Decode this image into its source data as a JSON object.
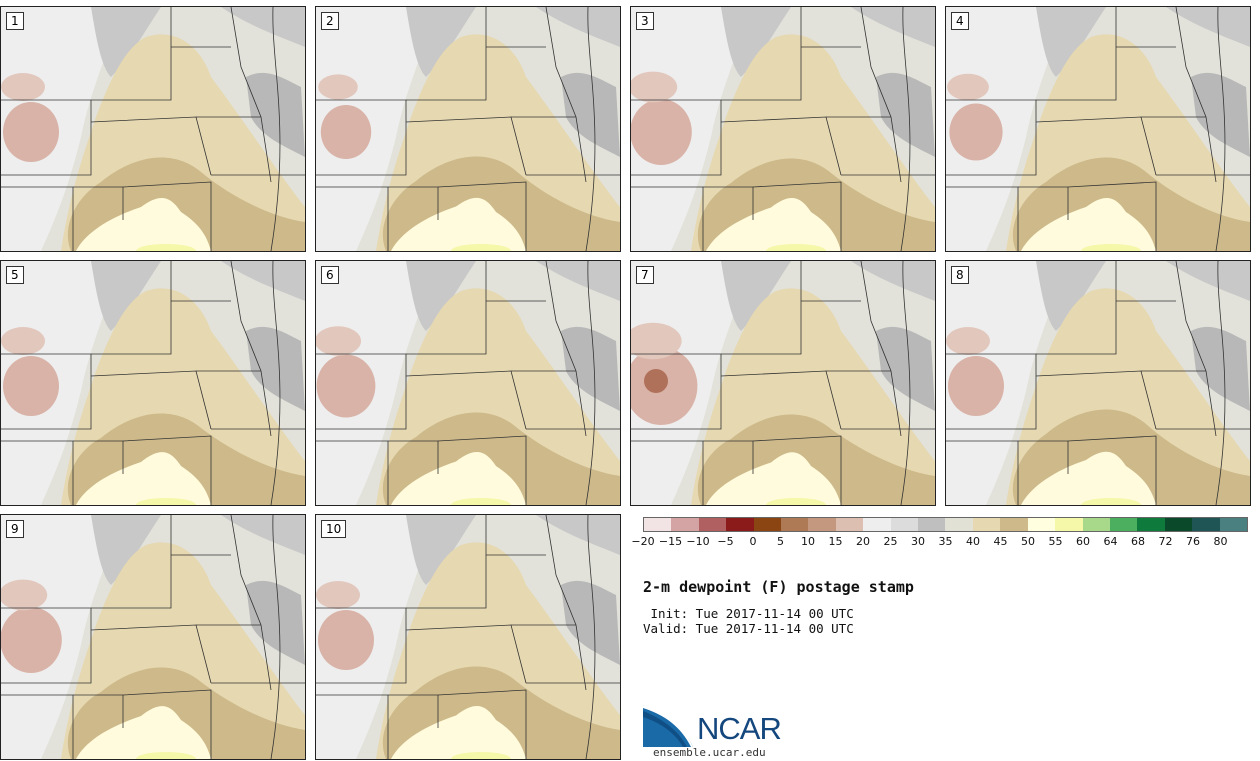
{
  "panels": [
    {
      "label": "1",
      "warm": 1.0,
      "dry": 1.0
    },
    {
      "label": "2",
      "warm": 1.05,
      "dry": 0.9
    },
    {
      "label": "3",
      "warm": 0.95,
      "dry": 1.1
    },
    {
      "label": "4",
      "warm": 1.0,
      "dry": 0.95
    },
    {
      "label": "5",
      "warm": 0.9,
      "dry": 1.0
    },
    {
      "label": "6",
      "warm": 0.95,
      "dry": 1.05
    },
    {
      "label": "7",
      "warm": 0.85,
      "dry": 1.3
    },
    {
      "label": "8",
      "warm": 1.1,
      "dry": 1.0
    },
    {
      "label": "9",
      "warm": 0.9,
      "dry": 1.1
    },
    {
      "label": "10",
      "warm": 0.95,
      "dry": 1.0
    }
  ],
  "colorbar": {
    "colors": [
      "#f2e4e4",
      "#d4a4a4",
      "#b06060",
      "#8b1a1a",
      "#8b4513",
      "#ad7a55",
      "#c4977f",
      "#dcbfb0",
      "#eeeeee",
      "#dcdcdc",
      "#bfbfbf",
      "#e1e1d6",
      "#e6d8b0",
      "#cdb98a",
      "#ffffe0",
      "#f5f7a9",
      "#a8d98b",
      "#4caf60",
      "#0e7a3c",
      "#0a4a2a",
      "#1f5555",
      "#4a8080"
    ],
    "ticks": [
      "−20",
      "−15",
      "−10",
      "−5",
      "0",
      "5",
      "10",
      "15",
      "20",
      "25",
      "30",
      "35",
      "40",
      "45",
      "50",
      "55",
      "60",
      "64",
      "68",
      "72",
      "76",
      "80"
    ]
  },
  "title": "2-m dewpoint (F) postage stamp",
  "init": " Init: Tue 2017-11-14 00 UTC",
  "valid": "Valid: Tue 2017-11-14 00 UTC",
  "logo": {
    "name": "NCAR",
    "url": "ensemble.ucar.edu"
  }
}
